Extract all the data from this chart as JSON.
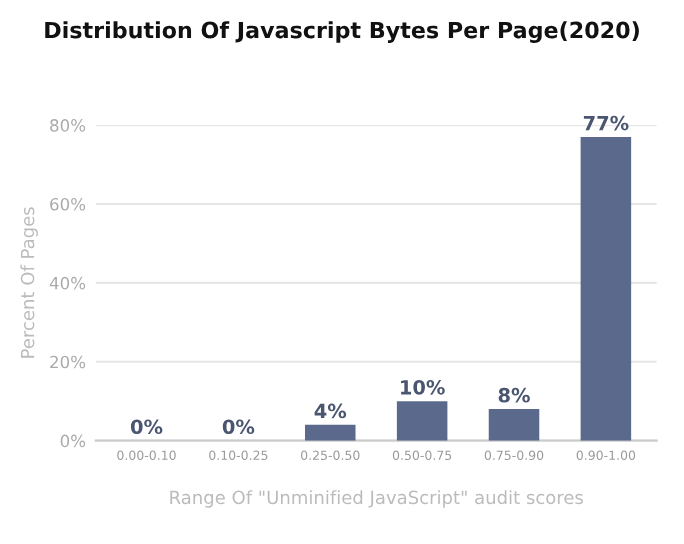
{
  "chart_data": {
    "type": "bar",
    "title": "Distribution Of Javascript Bytes Per Page(2020)",
    "xlabel": "Range Of \"Unminified JavaScript\" audit scores",
    "ylabel": "Percent Of Pages",
    "categories": [
      "0.00-0.10",
      "0.10-0.25",
      "0.25-0.50",
      "0.50-0.75",
      "0.75-0.90",
      "0.90-1.00"
    ],
    "values": [
      0,
      0,
      4,
      10,
      8,
      77
    ],
    "value_labels": [
      "0%",
      "0%",
      "4%",
      "10%",
      "8%",
      "77%"
    ],
    "color": "#5b6a8c",
    "ylim": [
      0,
      80
    ],
    "yticks": [
      {
        "value": 0,
        "label": "0%"
      },
      {
        "value": 20,
        "label": "20%"
      },
      {
        "value": 40,
        "label": "40%"
      },
      {
        "value": 60,
        "label": "60%"
      },
      {
        "value": 80,
        "label": "80%"
      }
    ],
    "grid": "y"
  }
}
